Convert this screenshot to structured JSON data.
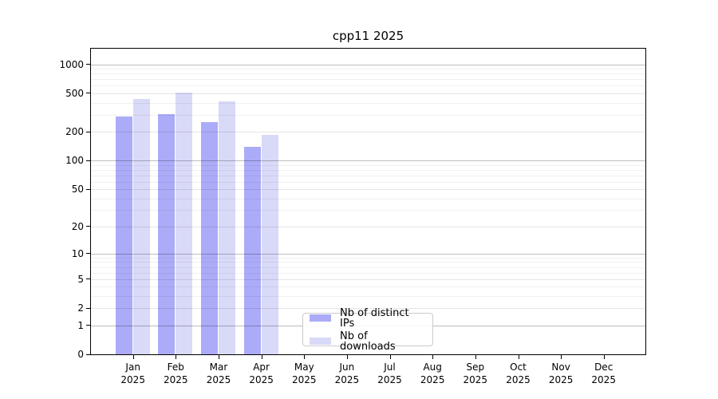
{
  "title": "cpp11 2025",
  "chart_data": {
    "type": "bar",
    "title": "cpp11 2025",
    "yscale": "log1p",
    "grid": "horizontal",
    "ylim": [
      0,
      1450
    ],
    "yticks": [
      0,
      1,
      2,
      5,
      10,
      20,
      50,
      100,
      200,
      500,
      1000
    ],
    "year_label": "2025",
    "months": [
      "Jan",
      "Feb",
      "Mar",
      "Apr",
      "May",
      "Jun",
      "Jul",
      "Aug",
      "Sep",
      "Oct",
      "Nov",
      "Dec"
    ],
    "categories": [
      "Jan 2025",
      "Feb 2025",
      "Mar 2025",
      "Apr 2025",
      "May 2025",
      "Jun 2025",
      "Jul 2025",
      "Aug 2025",
      "Sep 2025",
      "Oct 2025",
      "Nov 2025",
      "Dec 2025"
    ],
    "series": [
      {
        "name": "Nb of distinct IPs",
        "color": "#ababf8",
        "values": [
          288,
          305,
          250,
          138,
          null,
          null,
          null,
          null,
          null,
          null,
          null,
          null
        ]
      },
      {
        "name": "Nb of downloads",
        "color": "#d9d9f8",
        "values": [
          440,
          510,
          415,
          187,
          null,
          null,
          null,
          null,
          null,
          null,
          null,
          null
        ]
      }
    ],
    "legend_position": "lower center",
    "style": {
      "background": "#ffffff",
      "spine_color": "#000000",
      "grid_power10_color": "#c4c4c4",
      "grid_labeled_color": "#e8e8e8",
      "grid_minor_color": "#f1f1f1"
    }
  }
}
